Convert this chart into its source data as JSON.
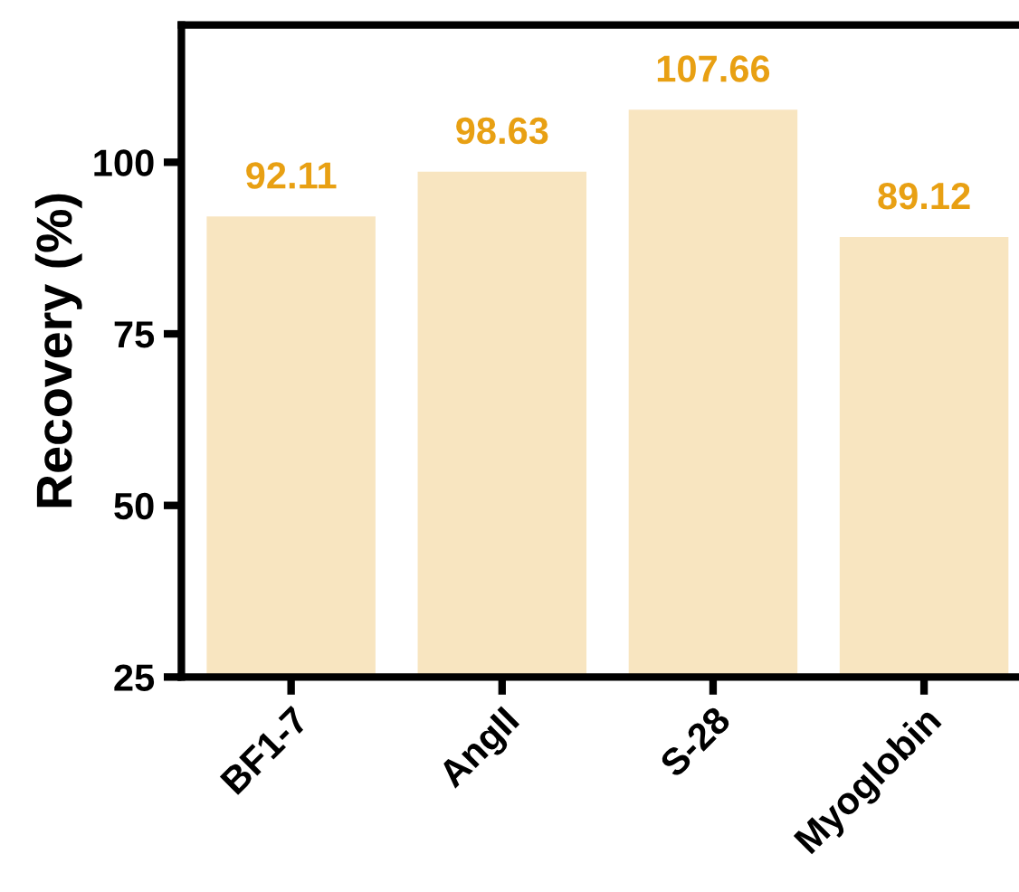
{
  "chart_data": {
    "type": "bar",
    "ylabel": "Recovery (%)",
    "categories": [
      "BF1-7",
      "AngII",
      "S-28",
      "Myoglobin"
    ],
    "values": [
      92.11,
      98.63,
      107.66,
      89.12
    ],
    "color": "#f8e5c0",
    "data_labels": true,
    "ylim": [
      25,
      120
    ],
    "yticks": [
      25,
      50,
      75,
      100
    ],
    "grid": false
  }
}
